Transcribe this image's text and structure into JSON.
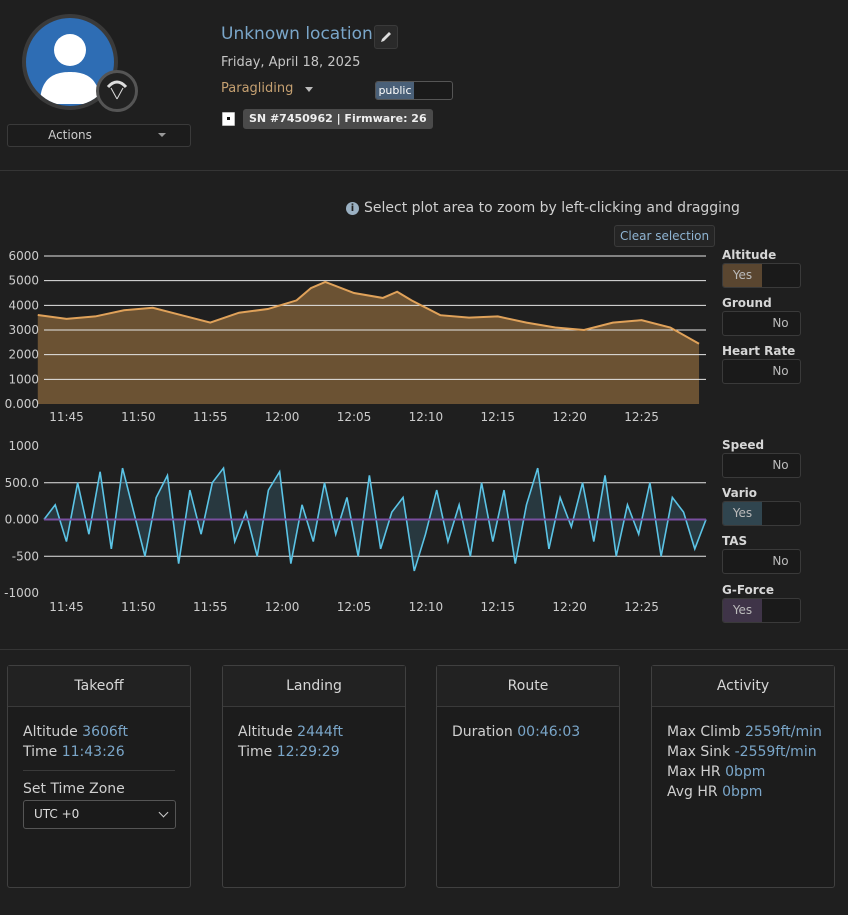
{
  "header": {
    "title": "Unknown location",
    "date": "Friday, April 18, 2025",
    "activity": "Paragliding",
    "visibility": "public",
    "device": "SN #7450962 | Firmware: 26",
    "actions_label": "Actions"
  },
  "hint": "Select plot area to zoom by left-clicking and dragging",
  "clear_selection": "Clear selection",
  "series_toggles": [
    {
      "name": "Altitude",
      "state": "Yes"
    },
    {
      "name": "Ground",
      "state": "No"
    },
    {
      "name": "Heart Rate",
      "state": "No"
    },
    {
      "name": "Speed",
      "state": "No"
    },
    {
      "name": "Vario",
      "state": "Yes"
    },
    {
      "name": "TAS",
      "state": "No"
    },
    {
      "name": "G-Force",
      "state": "Yes"
    }
  ],
  "colors": {
    "altitude_fill": "#6b5233",
    "altitude_line": "#e0a25a",
    "vario_line": "#5bc4e6",
    "vario_fill": "#2e4a55",
    "gforce_line": "#7a4fa0",
    "toggle_alt": "#5a4630",
    "toggle_vario": "#30454f",
    "toggle_g": "#3f3448"
  },
  "chart_data": [
    {
      "type": "area",
      "title": "",
      "ylim": [
        0,
        6000
      ],
      "yticks": [
        "0.000",
        "1000",
        "2000",
        "3000",
        "4000",
        "5000",
        "6000"
      ],
      "xticks": [
        "11:45",
        "11:50",
        "11:55",
        "12:00",
        "12:05",
        "12:10",
        "12:15",
        "12:20",
        "12:25"
      ],
      "series": [
        {
          "name": "Altitude",
          "x": [
            "11:43",
            "11:45",
            "11:47",
            "11:49",
            "11:51",
            "11:53",
            "11:55",
            "11:57",
            "11:59",
            "12:01",
            "12:02",
            "12:03",
            "12:05",
            "12:07",
            "12:08",
            "12:09",
            "12:11",
            "12:13",
            "12:15",
            "12:17",
            "12:19",
            "12:21",
            "12:23",
            "12:25",
            "12:27",
            "12:29"
          ],
          "values": [
            3606,
            3450,
            3550,
            3800,
            3900,
            3600,
            3300,
            3700,
            3850,
            4200,
            4700,
            4950,
            4500,
            4300,
            4550,
            4200,
            3600,
            3500,
            3550,
            3300,
            3100,
            3000,
            3300,
            3400,
            3100,
            2444
          ]
        }
      ]
    },
    {
      "type": "line",
      "title": "",
      "ylim": [
        -1000,
        1000
      ],
      "yticks": [
        "-1000",
        "-500",
        "0.000",
        "500.0",
        "1000"
      ],
      "xticks": [
        "11:45",
        "11:50",
        "11:55",
        "12:00",
        "12:05",
        "12:10",
        "12:15",
        "12:20",
        "12:25"
      ],
      "series": [
        {
          "name": "Vario",
          "values": [
            0,
            200,
            -300,
            500,
            -200,
            650,
            -400,
            700,
            100,
            -500,
            300,
            600,
            -600,
            400,
            -200,
            500,
            700,
            -300,
            100,
            -500,
            400,
            650,
            -600,
            200,
            -300,
            500,
            -200,
            300,
            -500,
            600,
            -400,
            100,
            300,
            -700,
            -200,
            400,
            -300,
            200,
            -500,
            500,
            -300,
            400,
            -600,
            200,
            700,
            -400,
            300,
            -100,
            500,
            -300,
            600,
            -500,
            200,
            -200,
            500,
            -500,
            300,
            100,
            -400,
            0
          ]
        },
        {
          "name": "G-Force",
          "values": [
            0,
            0
          ]
        }
      ]
    }
  ],
  "cards": {
    "takeoff": {
      "title": "Takeoff",
      "altitude_label": "Altitude",
      "altitude": "3606ft",
      "time_label": "Time",
      "time": "11:43:26",
      "tz_label": "Set Time Zone",
      "tz_value": "UTC +0"
    },
    "landing": {
      "title": "Landing",
      "altitude_label": "Altitude",
      "altitude": "2444ft",
      "time_label": "Time",
      "time": "12:29:29"
    },
    "route": {
      "title": "Route",
      "duration_label": "Duration",
      "duration": "00:46:03"
    },
    "activity": {
      "title": "Activity",
      "max_climb_label": "Max Climb",
      "max_climb": "2559ft/min",
      "max_sink_label": "Max Sink",
      "max_sink": "-2559ft/min",
      "max_hr_label": "Max HR",
      "max_hr": "0bpm",
      "avg_hr_label": "Avg HR",
      "avg_hr": "0bpm"
    }
  }
}
